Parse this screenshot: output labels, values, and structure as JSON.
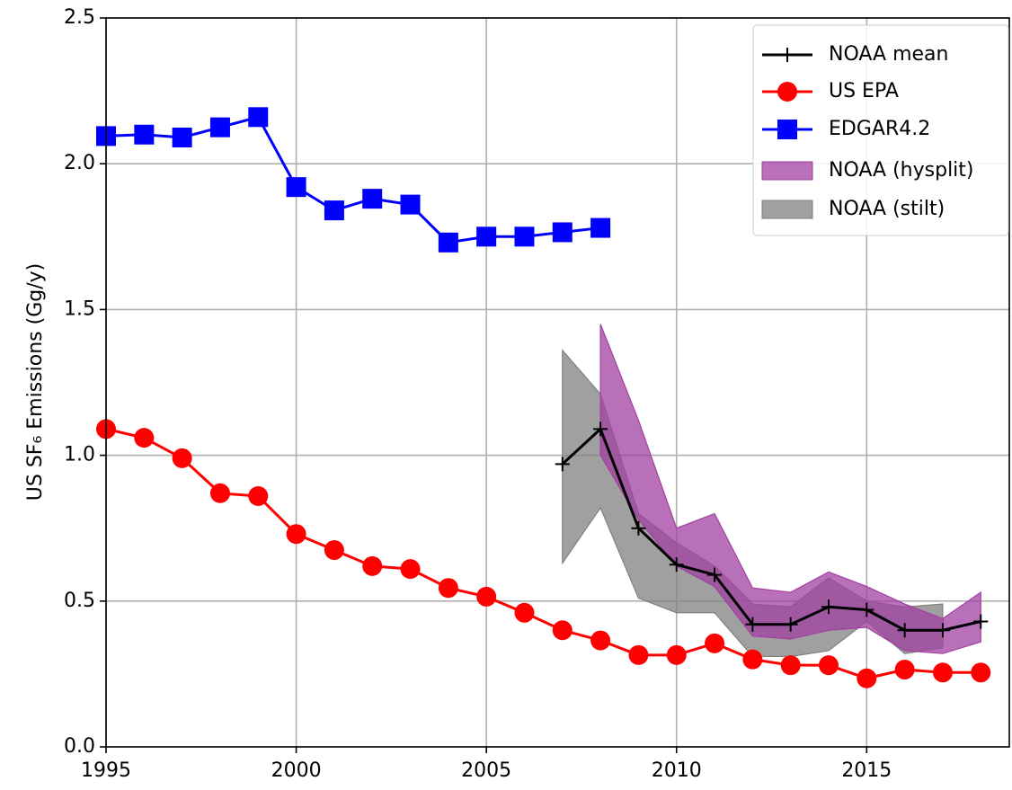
{
  "chart_data": {
    "type": "line",
    "ylabel": "US SF₆ Emissions (Gg/y)",
    "xlim": [
      1995,
      2018.75
    ],
    "ylim": [
      0,
      2.5
    ],
    "xticks": [
      1995,
      2000,
      2005,
      2010,
      2015
    ],
    "yticks": [
      {
        "value": 0,
        "label": "0.0"
      },
      0.5,
      {
        "value": 1,
        "label": "1.0"
      },
      1.5,
      {
        "value": 2,
        "label": "2.0"
      },
      2.5
    ],
    "grid": true,
    "legend": "upper right",
    "series": [
      {
        "name": "NOAA mean",
        "color": "#000000",
        "marker": "plus",
        "x": [
          2007,
          2008,
          2009,
          2010,
          2011,
          2012,
          2013,
          2014,
          2015,
          2016,
          2017,
          2018
        ],
        "values": [
          0.97,
          1.09,
          0.75,
          0.625,
          0.59,
          0.42,
          0.42,
          0.48,
          0.47,
          0.4,
          0.4,
          0.43
        ]
      },
      {
        "name": "US EPA",
        "color": "#ff0000",
        "marker": "circle",
        "x": [
          1995,
          1996,
          1997,
          1998,
          1999,
          2000,
          2001,
          2002,
          2003,
          2004,
          2005,
          2006,
          2007,
          2008,
          2009,
          2010,
          2011,
          2012,
          2013,
          2014,
          2015,
          2016,
          2017,
          2018
        ],
        "values": [
          1.09,
          1.06,
          0.99,
          0.87,
          0.86,
          0.73,
          0.675,
          0.62,
          0.61,
          0.545,
          0.515,
          0.46,
          0.4,
          0.365,
          0.315,
          0.315,
          0.355,
          0.3,
          0.28,
          0.28,
          0.235,
          0.265,
          0.255,
          0.255
        ]
      },
      {
        "name": "EDGAR4.2",
        "color": "#0000ff",
        "marker": "square",
        "x": [
          1995,
          1996,
          1997,
          1998,
          1999,
          2000,
          2001,
          2002,
          2003,
          2004,
          2005,
          2006,
          2007,
          2008
        ],
        "values": [
          2.095,
          2.1,
          2.09,
          2.125,
          2.16,
          1.92,
          1.84,
          1.88,
          1.86,
          1.73,
          1.75,
          1.75,
          1.765,
          1.78
        ]
      },
      {
        "name": "NOAA (hysplit)",
        "color": "#a040a0",
        "band": true,
        "x": [
          2008,
          2009,
          2010,
          2011,
          2012,
          2013,
          2014,
          2015,
          2016,
          2017,
          2018
        ],
        "upper": [
          1.45,
          1.12,
          0.75,
          0.8,
          0.545,
          0.53,
          0.6,
          0.55,
          0.49,
          0.44,
          0.53
        ],
        "lower": [
          1.0,
          0.78,
          0.62,
          0.55,
          0.38,
          0.37,
          0.4,
          0.41,
          0.33,
          0.32,
          0.36
        ]
      },
      {
        "name": "NOAA (stilt)",
        "color": "#808080",
        "band": true,
        "x": [
          2007,
          2008,
          2009,
          2010,
          2011,
          2012,
          2013,
          2014,
          2015,
          2016,
          2017
        ],
        "upper": [
          1.36,
          1.21,
          0.8,
          0.7,
          0.62,
          0.49,
          0.48,
          0.58,
          0.5,
          0.48,
          0.49
        ],
        "lower": [
          0.63,
          0.82,
          0.51,
          0.46,
          0.46,
          0.31,
          0.31,
          0.33,
          0.43,
          0.32,
          0.34
        ]
      }
    ]
  }
}
